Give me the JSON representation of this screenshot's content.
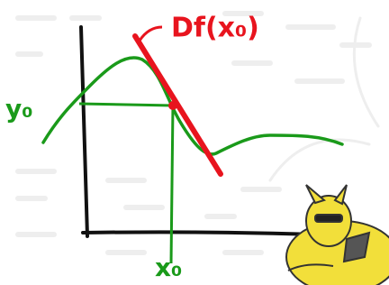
{
  "annotations": {
    "tangent_label": "Df(x₀)",
    "y_label": "y₀",
    "x_label": "x₀"
  }
}
